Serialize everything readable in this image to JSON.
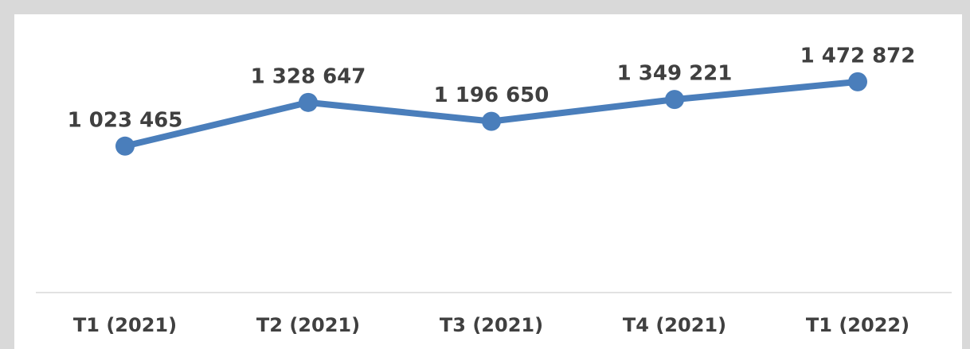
{
  "chart_data": {
    "type": "line",
    "categories": [
      "T1 (2021)",
      "T2 (2021)",
      "T3 (2021)",
      "T4 (2021)",
      "T1 (2022)"
    ],
    "series": [
      {
        "color": "#4a7ebb",
        "values": [
          1023465,
          1328647,
          1196650,
          1349221,
          1472872
        ],
        "value_labels": [
          "1 023 465",
          "1 328 647",
          "1 196 650",
          "1 349 221",
          "1 472 872"
        ]
      }
    ],
    "ylim": [
      0,
      1500000
    ]
  }
}
